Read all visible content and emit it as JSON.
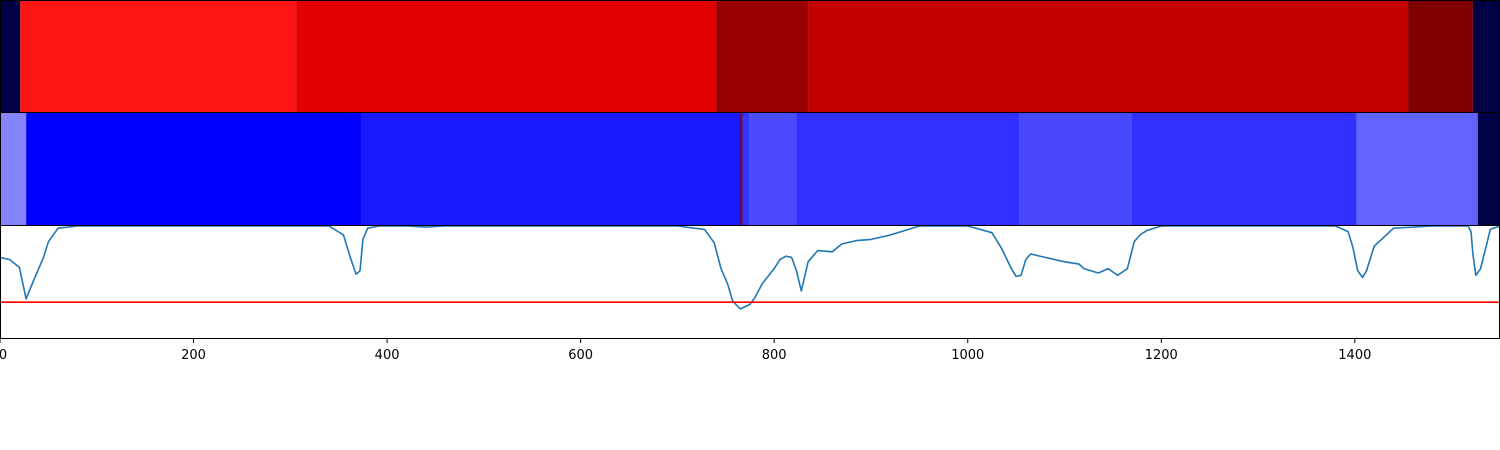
{
  "colors": {
    "panel_border": "#000000",
    "series_line": "#1f77b4",
    "threshold_line": "#ff0000",
    "marker_line": "#8b0000",
    "red_band_dark_edge": "#000044",
    "blue_band_dark_edge": "#000044"
  },
  "chart_data": {
    "type": "line",
    "xlim": [
      0,
      1550
    ],
    "x_ticks": [
      0,
      200,
      400,
      600,
      800,
      1000,
      1200,
      1400
    ],
    "x_tick_labels": [
      "0",
      "200",
      "400",
      "600",
      "800",
      "1000",
      "1200",
      "1400"
    ],
    "grid": false,
    "legend": "none",
    "panels": [
      {
        "name": "red-segment-band",
        "kind": "segment-band",
        "segments": [
          {
            "start": 0,
            "end": 21,
            "color": "#000044"
          },
          {
            "start": 21,
            "end": 306,
            "color": "#ff1414"
          },
          {
            "start": 306,
            "end": 740,
            "color": "#e50000"
          },
          {
            "start": 740,
            "end": 835,
            "color": "#9a0000"
          },
          {
            "start": 835,
            "end": 1455,
            "color": "#c20000"
          },
          {
            "start": 1455,
            "end": 1522,
            "color": "#800000"
          },
          {
            "start": 1522,
            "end": 1550,
            "color": "#000044"
          }
        ]
      },
      {
        "name": "blue-segment-band",
        "kind": "segment-band",
        "segments": [
          {
            "start": 0,
            "end": 27,
            "color": "#8585ff"
          },
          {
            "start": 27,
            "end": 373,
            "color": "#0000ff"
          },
          {
            "start": 373,
            "end": 766,
            "color": "#1a1aff"
          },
          {
            "start": 766,
            "end": 774,
            "color": "#3535ff"
          },
          {
            "start": 774,
            "end": 823,
            "color": "#4a4aff"
          },
          {
            "start": 823,
            "end": 1053,
            "color": "#2f2fff"
          },
          {
            "start": 1053,
            "end": 1169,
            "color": "#4848ff"
          },
          {
            "start": 1169,
            "end": 1402,
            "color": "#3030ff"
          },
          {
            "start": 1402,
            "end": 1527,
            "color": "#6262ff"
          },
          {
            "start": 1527,
            "end": 1550,
            "color": "#000044"
          }
        ],
        "markers": [
          766
        ]
      },
      {
        "name": "signal-line",
        "kind": "line",
        "ylim": [
          0,
          1
        ],
        "threshold": 0.32,
        "series": [
          {
            "x": [
              0,
              10,
              20,
              27,
              35,
              45,
              50,
              60,
              80,
              120,
              200,
              300,
              340,
              355,
              362,
              368,
              372,
              375,
              380,
              392,
              420,
              440,
              460,
              600,
              700,
              728,
              738,
              745,
              752,
              757,
              765,
              775,
              780,
              788,
              800,
              806,
              812,
              818,
              823,
              828,
              835,
              845,
              860,
              870,
              885,
              900,
              920,
              950,
              1000,
              1025,
              1035,
              1045,
              1050,
              1055,
              1060,
              1065,
              1070,
              1080,
              1100,
              1115,
              1120,
              1135,
              1145,
              1155,
              1165,
              1172,
              1178,
              1185,
              1200,
              1225,
              1300,
              1380,
              1393,
              1398,
              1403,
              1408,
              1412,
              1420,
              1440,
              1480,
              1517,
              1520,
              1522,
              1525,
              1530,
              1540,
              1550
            ],
            "y": [
              0.72,
              0.7,
              0.63,
              0.35,
              0.52,
              0.72,
              0.86,
              0.98,
              1.0,
              1.0,
              1.0,
              1.0,
              1.0,
              0.92,
              0.72,
              0.57,
              0.6,
              0.88,
              0.98,
              1.0,
              1.0,
              0.99,
              1.0,
              1.0,
              1.0,
              0.97,
              0.85,
              0.62,
              0.48,
              0.33,
              0.26,
              0.3,
              0.36,
              0.49,
              0.62,
              0.7,
              0.73,
              0.72,
              0.6,
              0.42,
              0.68,
              0.78,
              0.77,
              0.84,
              0.87,
              0.88,
              0.92,
              1.0,
              1.0,
              0.94,
              0.8,
              0.62,
              0.55,
              0.56,
              0.7,
              0.75,
              0.74,
              0.72,
              0.68,
              0.66,
              0.62,
              0.58,
              0.62,
              0.56,
              0.62,
              0.86,
              0.92,
              0.96,
              1.0,
              1.0,
              1.0,
              1.0,
              0.95,
              0.81,
              0.6,
              0.54,
              0.6,
              0.82,
              0.98,
              1.0,
              1.0,
              0.95,
              0.75,
              0.56,
              0.62,
              0.97,
              1.0
            ]
          }
        ]
      }
    ]
  }
}
